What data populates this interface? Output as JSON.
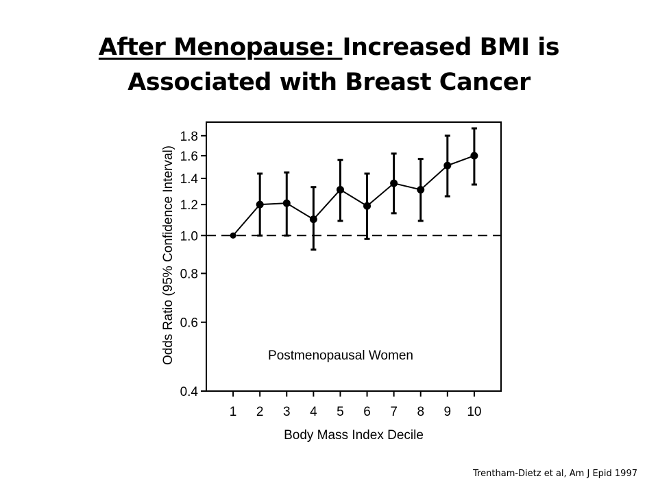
{
  "slide": {
    "title_underlined": "After Menopause: ",
    "title_rest": "Increased BMI is Associated with Breast Cancer",
    "citation": "Trentham-Dietz et al, Am J Epid 1997"
  },
  "chart_data": {
    "type": "line",
    "title": "",
    "xlabel": "Body Mass Index Decile",
    "ylabel": "Odds Ratio (95% Confidence Interval)",
    "yscale": "log",
    "ylim": [
      0.4,
      1.95
    ],
    "xlim": [
      0,
      11
    ],
    "yticks": [
      0.4,
      0.6,
      0.8,
      1.0,
      1.2,
      1.4,
      1.6,
      1.8
    ],
    "ytick_labels": [
      "0.4",
      "0.6",
      "0.8",
      "1.0",
      "1.2",
      "1.4",
      "1.6",
      "1.8"
    ],
    "x": [
      1,
      2,
      3,
      4,
      5,
      6,
      7,
      8,
      9,
      10
    ],
    "xtick_labels": [
      "1",
      "2",
      "3",
      "4",
      "5",
      "6",
      "7",
      "8",
      "9",
      "10"
    ],
    "annotation": "Postmenopausal Women",
    "reference_line": 1.0,
    "grid": false,
    "series": [
      {
        "name": "",
        "values": [
          1.0,
          1.2,
          1.21,
          1.1,
          1.31,
          1.19,
          1.36,
          1.31,
          1.51,
          1.6
        ],
        "ci_lower": [
          null,
          1.0,
          1.0,
          0.92,
          1.09,
          0.98,
          1.14,
          1.09,
          1.26,
          1.35
        ],
        "ci_upper": [
          null,
          1.44,
          1.45,
          1.33,
          1.56,
          1.44,
          1.62,
          1.57,
          1.8,
          1.88
        ]
      }
    ]
  }
}
